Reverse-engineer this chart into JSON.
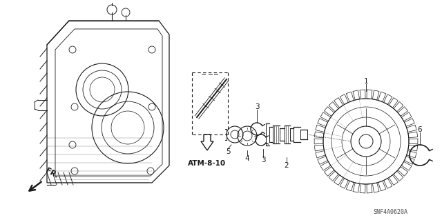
{
  "background_color": "#ffffff",
  "line_color": "#1a1a1a",
  "fig_width": 6.4,
  "fig_height": 3.19,
  "dpi": 100,
  "snf_label": "SNF4A0620A",
  "atm_label": "ATM-8-10",
  "fr_label": "FR."
}
